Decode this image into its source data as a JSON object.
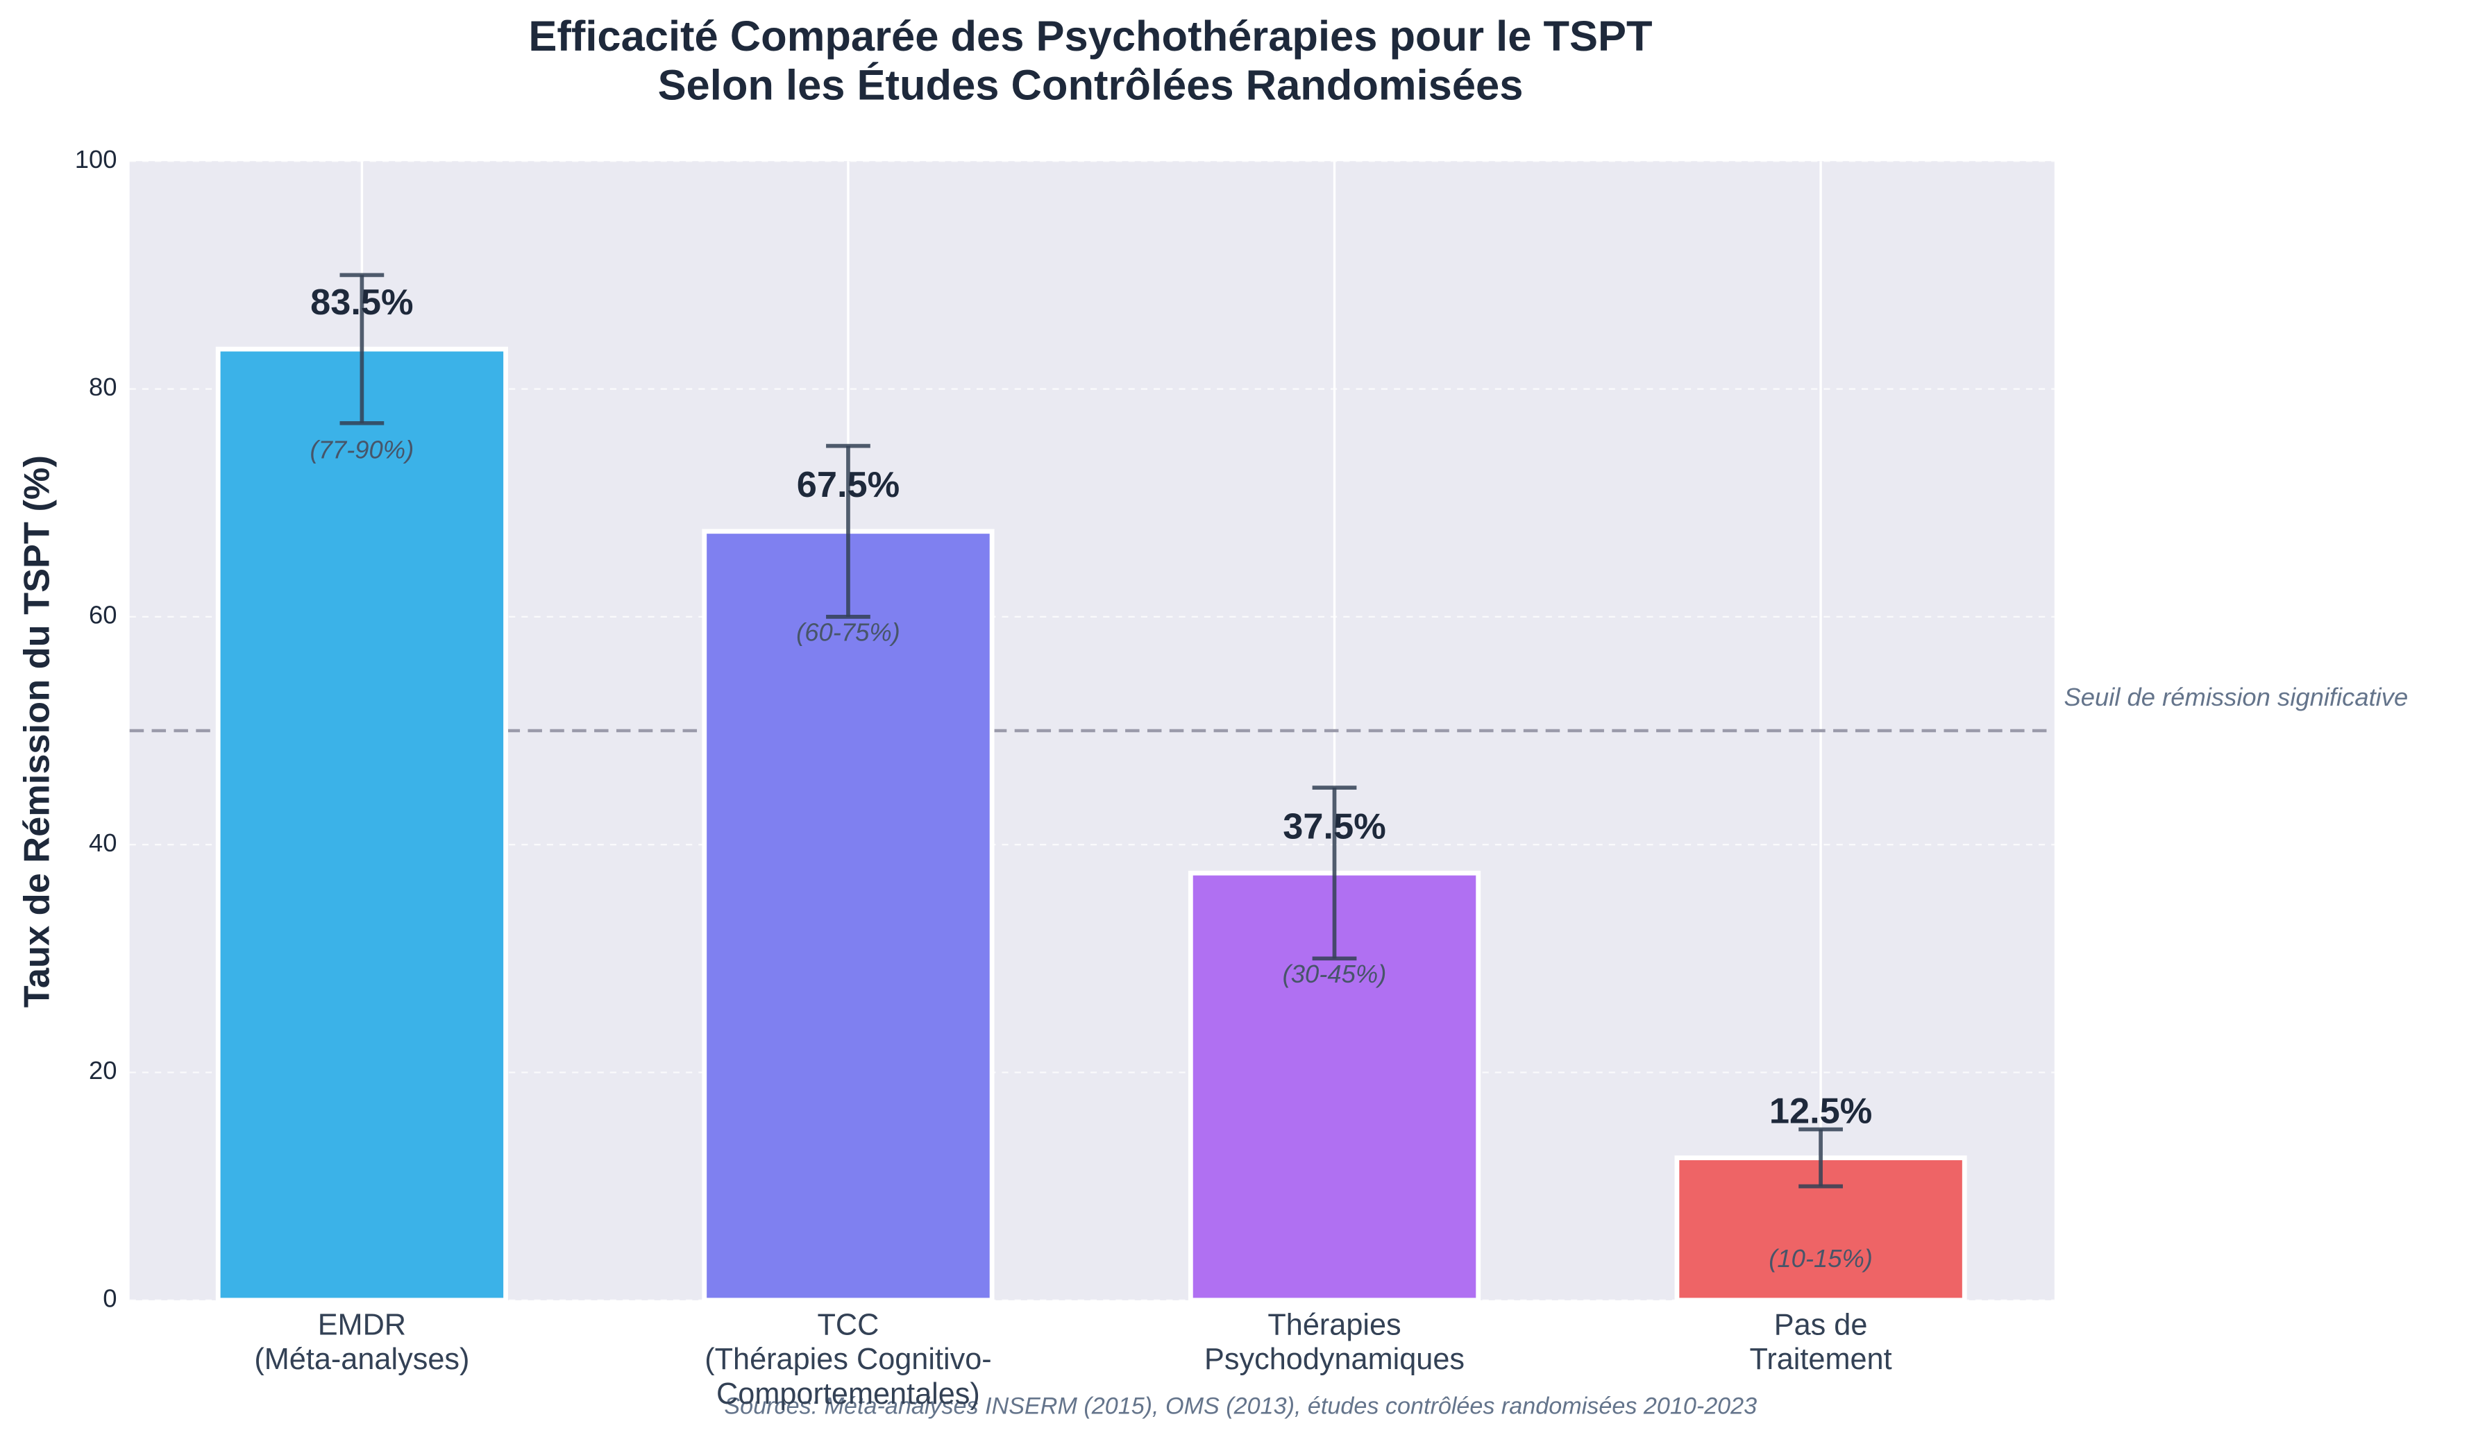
{
  "chart_data": {
    "type": "bar",
    "title": "Efficacité Comparée des Psychothérapies pour le TSPT\nSelon les Études Contrôlées Randomisées",
    "ylabel": "Taux de Rémission du TSPT (%)",
    "categories": [
      "EMDR\n(Méta-analyses)",
      "TCC\n(Thérapies Cognitivo-\nComportementales)",
      "Thérapies\nPsychodynamiques",
      "Pas de\nTraitement"
    ],
    "values": [
      83.5,
      67.5,
      37.5,
      12.5
    ],
    "value_labels": [
      "83.5%",
      "67.5%",
      "37.5%",
      "12.5%"
    ],
    "error_low": [
      77,
      60,
      30,
      10
    ],
    "error_high": [
      90,
      75,
      45,
      15
    ],
    "range_labels": [
      "(77-90%)",
      "(60-75%)",
      "(30-45%)",
      "(10-15%)"
    ],
    "colors": [
      "#3bb2e8",
      "#7f80f0",
      "#b070f2",
      "#ee6466"
    ],
    "threshold": 50,
    "threshold_label": "Seuil de rémission significative",
    "source": "Sources: Méta-analyses INSERM (2015), OMS (2013), études contrôlées randomisées 2010-2023",
    "ylim": [
      0,
      100
    ],
    "yticks": [
      0,
      20,
      40,
      60,
      80,
      100
    ],
    "grid": true
  }
}
